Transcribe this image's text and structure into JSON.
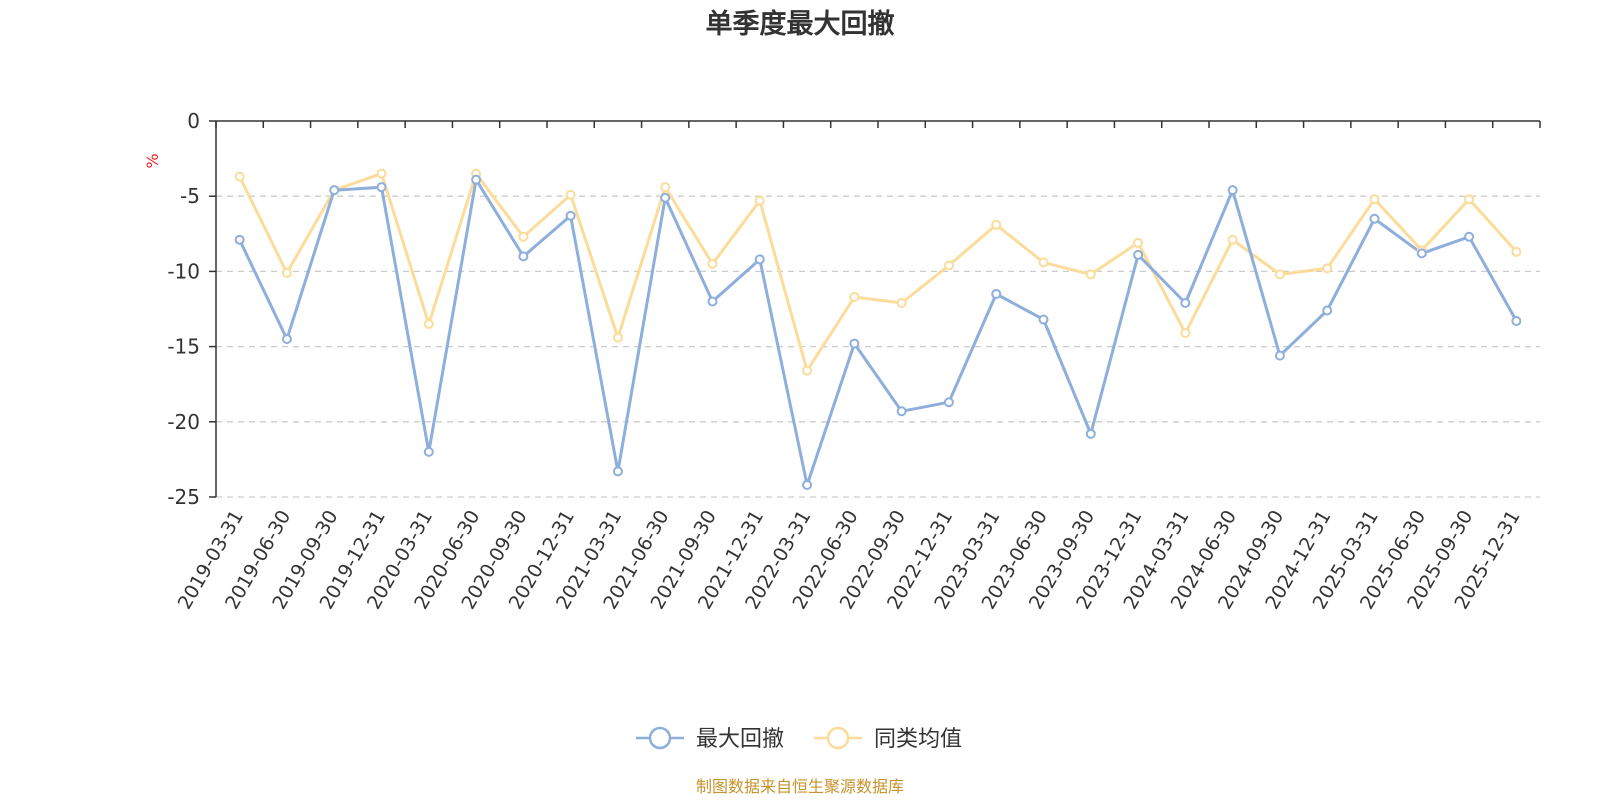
{
  "chart_data": {
    "type": "line",
    "title": "单季度最大回撤",
    "ylabel": "%",
    "ylim": [
      -25,
      0
    ],
    "yticks": [
      0,
      -5,
      -10,
      -15,
      -20,
      -25
    ],
    "grid": true,
    "legend_position": "bottom-center",
    "categories": [
      "2019-03-31",
      "2019-06-30",
      "2019-09-30",
      "2019-12-31",
      "2020-03-31",
      "2020-06-30",
      "2020-09-30",
      "2020-12-31",
      "2021-03-31",
      "2021-06-30",
      "2021-09-30",
      "2021-12-31",
      "2022-03-31",
      "2022-06-30",
      "2022-09-30",
      "2022-12-31",
      "2023-03-31",
      "2023-06-30",
      "2023-09-30",
      "2023-12-31",
      "2024-03-31",
      "2024-06-30",
      "2024-09-30",
      "2024-12-31",
      "2025-03-31",
      "2025-06-30",
      "2025-09-30",
      "2025-12-31"
    ],
    "series": [
      {
        "name": "最大回撤",
        "color": "#8eaedb",
        "values": [
          -7.9,
          -14.5,
          -4.6,
          -4.4,
          -22.0,
          -3.9,
          -9.0,
          -6.3,
          -23.3,
          -5.1,
          -12.0,
          -9.2,
          -24.2,
          -14.8,
          -19.3,
          -18.7,
          -11.5,
          -13.2,
          -20.8,
          -8.9,
          -12.1,
          -4.6,
          -15.6,
          -12.6,
          -6.5,
          -8.8,
          -7.7,
          -13.3
        ]
      },
      {
        "name": "同类均值",
        "color": "#fbdc9a",
        "values": [
          -3.7,
          -10.1,
          -4.6,
          -3.5,
          -13.5,
          -3.5,
          -7.7,
          -4.9,
          -14.4,
          -4.4,
          -9.5,
          -5.3,
          -16.6,
          -11.7,
          -12.1,
          -9.6,
          -6.9,
          -9.4,
          -10.2,
          -8.1,
          -14.1,
          -7.9,
          -10.2,
          -9.8,
          -5.2,
          -8.6,
          -5.2,
          -8.7
        ]
      }
    ]
  },
  "footer": "制图数据来自恒生聚源数据库"
}
